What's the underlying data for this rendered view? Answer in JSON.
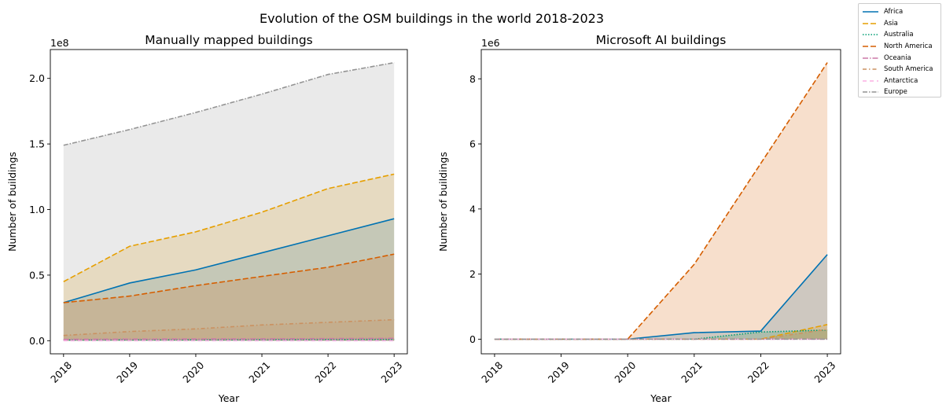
{
  "figure_title": "Evolution of the OSM buildings in the world 2018-2023",
  "chart_data": [
    {
      "type": "area",
      "title": "Manually mapped buildings",
      "xlabel": "Year",
      "ylabel": "Number of buildings",
      "offset_label": "1e8",
      "x": [
        "2018",
        "2019",
        "2020",
        "2021",
        "2022",
        "2023"
      ],
      "xlim": [
        2017.8,
        2023.2
      ],
      "ylim": [
        -0.1,
        2.22
      ],
      "yticks": [
        "0.0",
        "0.5",
        "1.0",
        "1.5",
        "2.0"
      ],
      "grid": false,
      "series": [
        {
          "name": "Africa",
          "values": [
            0.29,
            0.44,
            0.54,
            0.67,
            0.8,
            0.93
          ]
        },
        {
          "name": "Asia",
          "values": [
            0.45,
            0.72,
            0.83,
            0.98,
            1.16,
            1.27
          ]
        },
        {
          "name": "Australia",
          "values": [
            0.005,
            0.006,
            0.007,
            0.008,
            0.009,
            0.01
          ]
        },
        {
          "name": "North America",
          "values": [
            0.29,
            0.34,
            0.42,
            0.49,
            0.56,
            0.66
          ]
        },
        {
          "name": "Oceania",
          "values": [
            0.01,
            0.012,
            0.013,
            0.014,
            0.016,
            0.018
          ]
        },
        {
          "name": "South America",
          "values": [
            0.04,
            0.07,
            0.09,
            0.12,
            0.14,
            0.16
          ]
        },
        {
          "name": "Antarctica",
          "values": [
            0.0,
            0.0,
            0.0,
            0.0,
            0.0,
            0.0
          ]
        },
        {
          "name": "Europe",
          "values": [
            1.49,
            1.61,
            1.74,
            1.88,
            2.03,
            2.12
          ]
        }
      ]
    },
    {
      "type": "area",
      "title": "Microsoft AI buildings",
      "xlabel": "Year",
      "ylabel": "Number of buildings",
      "offset_label": "1e6",
      "x": [
        "2018",
        "2019",
        "2020",
        "2021",
        "2022",
        "2023"
      ],
      "xlim": [
        2017.8,
        2023.2
      ],
      "ylim": [
        -0.45,
        8.9
      ],
      "yticks": [
        "0",
        "2",
        "4",
        "6",
        "8"
      ],
      "grid": false,
      "series": [
        {
          "name": "Africa",
          "values": [
            0,
            0,
            0,
            0.2,
            0.25,
            2.6
          ]
        },
        {
          "name": "Asia",
          "values": [
            0,
            0,
            0,
            0,
            0,
            0.45
          ]
        },
        {
          "name": "Australia",
          "values": [
            0,
            0,
            0,
            0,
            0.22,
            0.28
          ]
        },
        {
          "name": "North America",
          "values": [
            0,
            0,
            0,
            2.3,
            5.4,
            8.5
          ]
        },
        {
          "name": "Oceania",
          "values": [
            0,
            0,
            0,
            0,
            0,
            0
          ]
        },
        {
          "name": "South America",
          "values": [
            0,
            0,
            0,
            0,
            0,
            0.3
          ]
        },
        {
          "name": "Antarctica",
          "values": [
            0,
            0,
            0,
            0,
            0,
            0
          ]
        },
        {
          "name": "Europe",
          "values": [
            0,
            0,
            0,
            0,
            0,
            0
          ]
        }
      ]
    }
  ],
  "legend": {
    "placement": "top-right",
    "items": [
      {
        "name": "Africa",
        "color": "#0072b2",
        "dash": "solid"
      },
      {
        "name": "Asia",
        "color": "#e69f00",
        "dash": "dashed"
      },
      {
        "name": "Australia",
        "color": "#009e73",
        "dash": "dotted"
      },
      {
        "name": "North America",
        "color": "#d55e00",
        "dash": "dashed"
      },
      {
        "name": "Oceania",
        "color": "#cc79a7",
        "dash": "dashdot"
      },
      {
        "name": "South America",
        "color": "#ca9161",
        "dash": "dashdot-loose"
      },
      {
        "name": "Antarctica",
        "color": "#fbafe4",
        "dash": "dashed-loose"
      },
      {
        "name": "Europe",
        "color": "#949494",
        "dash": "dashdot-grey"
      }
    ]
  }
}
